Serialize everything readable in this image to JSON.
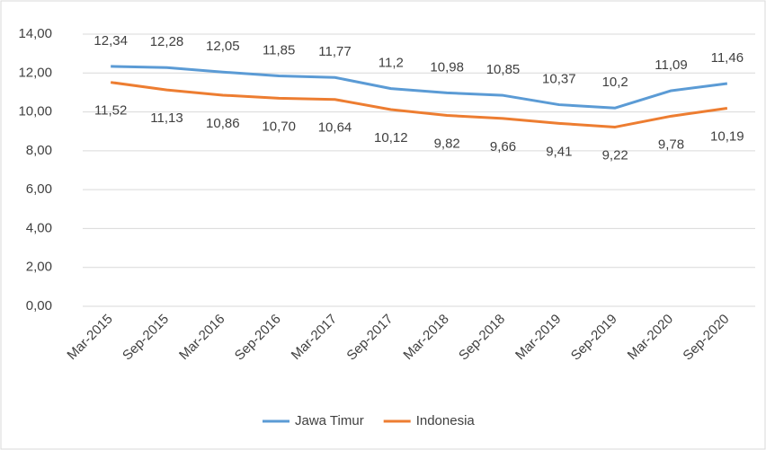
{
  "chart_data": {
    "type": "line",
    "categories": [
      "Mar-2015",
      "Sep-2015",
      "Mar-2016",
      "Sep-2016",
      "Mar-2017",
      "Sep-2017",
      "Mar-2018",
      "Sep-2018",
      "Mar-2019",
      "Sep-2019",
      "Mar-2020",
      "Sep-2020"
    ],
    "series": [
      {
        "name": "Jawa Timur",
        "color": "#5b9bd5",
        "values": [
          12.34,
          12.28,
          12.05,
          11.85,
          11.77,
          11.2,
          10.98,
          10.85,
          10.37,
          10.2,
          11.09,
          11.46
        ],
        "value_labels": [
          "12,34",
          "12,28",
          "12,05",
          "11,85",
          "11,77",
          "11,2",
          "10,98",
          "10,85",
          "10,37",
          "10,2",
          "11,09",
          "11,46"
        ]
      },
      {
        "name": "Indonesia",
        "color": "#ed7d31",
        "values": [
          11.52,
          11.13,
          10.86,
          10.7,
          10.64,
          10.12,
          9.82,
          9.66,
          9.41,
          9.22,
          9.78,
          10.19
        ],
        "value_labels": [
          "11,52",
          "11,13",
          "10,86",
          "10,70",
          "10,64",
          "10,12",
          "9,82",
          "9,66",
          "9,41",
          "9,22",
          "9,78",
          "10,19"
        ]
      }
    ],
    "ylim": [
      0,
      14
    ],
    "yticks": [
      {
        "value": 0,
        "label": "0,00"
      },
      {
        "value": 2,
        "label": "2,00"
      },
      {
        "value": 4,
        "label": "4,00"
      },
      {
        "value": 6,
        "label": "6,00"
      },
      {
        "value": 8,
        "label": "8,00"
      },
      {
        "value": 10,
        "label": "10,00"
      },
      {
        "value": 12,
        "label": "12,00"
      },
      {
        "value": 14,
        "label": "14,00"
      }
    ],
    "grid": true,
    "legend": "bottom"
  }
}
